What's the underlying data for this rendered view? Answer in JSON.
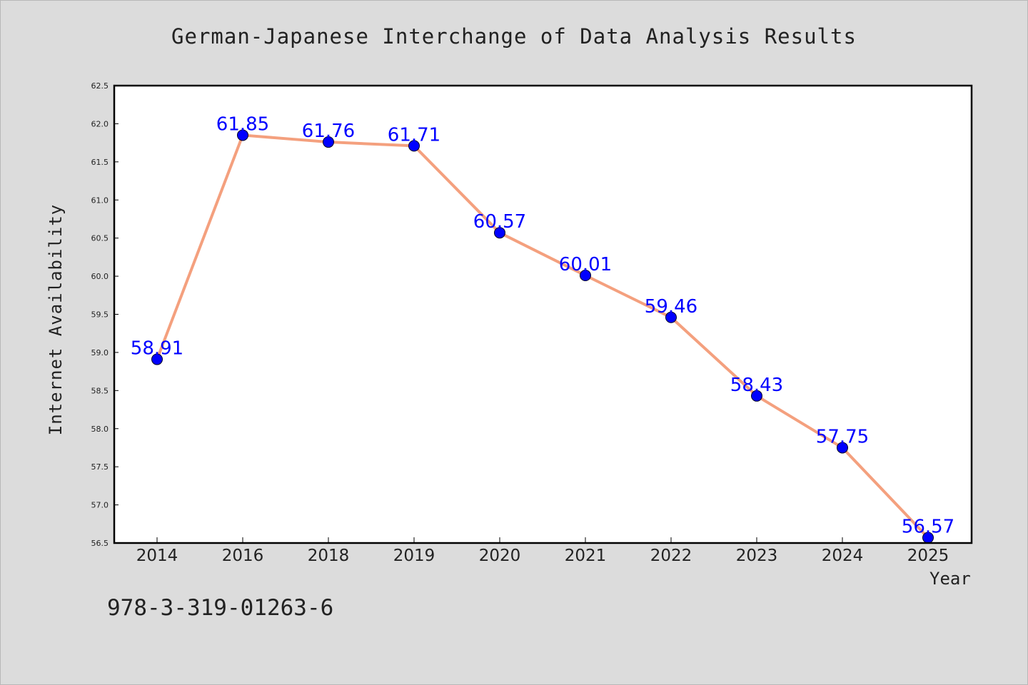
{
  "chart_data": {
    "type": "line",
    "title": "German-Japanese Interchange of Data Analysis Results",
    "xlabel": "Year",
    "ylabel": "Internet Availability",
    "categories": [
      "2014",
      "2016",
      "2018",
      "2019",
      "2020",
      "2021",
      "2022",
      "2023",
      "2024",
      "2025"
    ],
    "values": [
      58.91,
      61.85,
      61.76,
      61.71,
      60.57,
      60.01,
      59.46,
      58.43,
      57.75,
      56.57
    ],
    "data_labels": [
      "58.91",
      "61.85",
      "61.76",
      "61.71",
      "60.57",
      "60.01",
      "59.46",
      "58.43",
      "57.75",
      "56.57"
    ],
    "ylim": [
      56.5,
      62.5
    ],
    "yticks": [
      "56.5",
      "57.0",
      "57.5",
      "58.0",
      "58.5",
      "59.0",
      "59.5",
      "60.0",
      "60.5",
      "61.0",
      "61.5",
      "62.0",
      "62.5"
    ],
    "grid": false,
    "legend": "none",
    "colors": {
      "line": "#f4a07e",
      "marker": "#0000ff",
      "data_label": "#0000ff",
      "plot_background": "#ffffff",
      "figure_background": "#dcdcdc"
    }
  },
  "footer": {
    "code": "978-3-319-01263-6"
  }
}
